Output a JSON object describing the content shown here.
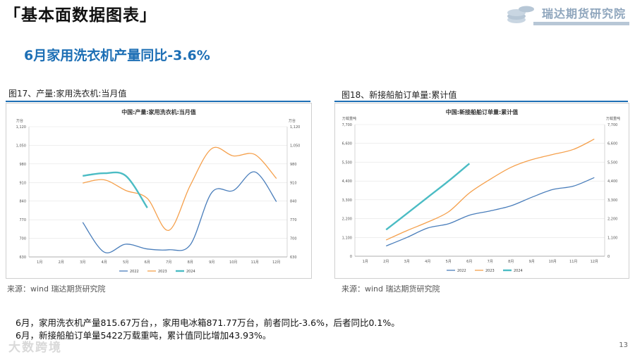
{
  "header": {
    "title": "「基本面数据图表」",
    "brand": "瑞达期货研究院"
  },
  "subtitle": "6月家用洗衣机产量同比-3.6%",
  "figures": {
    "left_label": "图17、产量:家用洗衣机:当月值",
    "right_label": "图18、新接船舶订单量:累计值",
    "left_source": "来源：wind   瑞达期货研究院",
    "right_source": "来源：wind   瑞达期货研究院"
  },
  "chart_data": [
    {
      "type": "line",
      "title": "中国:产量:家用洗衣机:当月值",
      "ylabel_left": "万台",
      "ylabel_right": "万台",
      "categories": [
        "1月",
        "2月",
        "3月",
        "4月",
        "5月",
        "6月",
        "7月",
        "8月",
        "9月",
        "10月",
        "11月",
        "12月"
      ],
      "yticks": [
        "630",
        "700",
        "770",
        "840",
        "910",
        "980",
        "1,050",
        "1,120"
      ],
      "ylim": [
        630,
        1120
      ],
      "series": [
        {
          "name": "2022",
          "color": "#4a7ebb",
          "values": [
            null,
            null,
            760,
            648,
            678,
            660,
            657,
            676,
            873,
            880,
            950,
            838
          ]
        },
        {
          "name": "2023",
          "color": "#f5a04c",
          "values": [
            null,
            null,
            908,
            920,
            880,
            850,
            730,
            900,
            1038,
            1010,
            1015,
            925
          ]
        },
        {
          "name": "2024",
          "color": "#4bbcc4",
          "values": [
            null,
            null,
            935,
            945,
            935,
            815,
            null,
            null,
            null,
            null,
            null,
            null
          ]
        }
      ]
    },
    {
      "type": "line",
      "title": "中国:新接船舶订单量:累计值",
      "ylabel_left": "万载重吨",
      "ylabel_right": "万载重吨",
      "categories": [
        "1月",
        "2月",
        "3月",
        "4月",
        "5月",
        "6月",
        "7月",
        "8月",
        "9月",
        "10月",
        "11月",
        "12月"
      ],
      "yticks": [
        "0",
        "1,100",
        "2,200",
        "3,300",
        "4,400",
        "5,500",
        "6,600",
        "7,700"
      ],
      "ylim": [
        0,
        7700
      ],
      "series": [
        {
          "name": "2022",
          "color": "#4a7ebb",
          "values": [
            null,
            600,
            1100,
            1650,
            1900,
            2400,
            2650,
            2950,
            3450,
            3900,
            4100,
            4600
          ]
        },
        {
          "name": "2023",
          "color": "#f5a04c",
          "values": [
            null,
            950,
            1500,
            2000,
            2600,
            3700,
            4500,
            5200,
            5650,
            5950,
            6250,
            6850
          ]
        },
        {
          "name": "2024",
          "color": "#4bbcc4",
          "values": [
            null,
            1550,
            2500,
            3450,
            4400,
            5422,
            null,
            null,
            null,
            null,
            null,
            null
          ]
        }
      ]
    }
  ],
  "summary": {
    "line1": "6月，家用洗衣机产量815.67万台，，家用电冰箱871.77万台，前者同比-3.6%，后者同比0.1%。",
    "line2": "6月，新接船舶订单量5422万载重吨，累计值同比增加43.93%。"
  },
  "page_number": "13",
  "watermark": "大数跨境"
}
